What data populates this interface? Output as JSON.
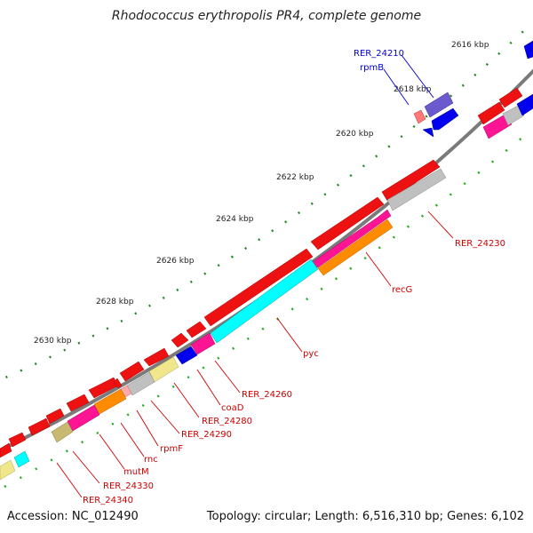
{
  "title": "Rhodococcus erythropolis PR4, complete genome",
  "footer": {
    "accession": "Accession: NC_012490",
    "summary": "Topology: circular; Length: 6,516,310 bp; Genes: 6,102"
  },
  "colors": {
    "cds": "#ee1111",
    "backbone": "#777777",
    "tick_major": "#228822",
    "tick_minor": "#22aa22",
    "label_red": "#cc0000",
    "label_blue": "#0000cc"
  },
  "ticks": [
    "2616 kbp",
    "2618 kbp",
    "2620 kbp",
    "2622 kbp",
    "2624 kbp",
    "2626 kbp",
    "2628 kbp",
    "2630 kbp"
  ],
  "genes": {
    "blue": [
      "RER_24210",
      "rpmB"
    ],
    "red": [
      "RER_24230",
      "recG",
      "pyc",
      "RER_24260",
      "coaD",
      "RER_24280",
      "RER_24290",
      "rpmF",
      "rnc",
      "mutM",
      "RER_24330",
      "RER_24340"
    ]
  }
}
